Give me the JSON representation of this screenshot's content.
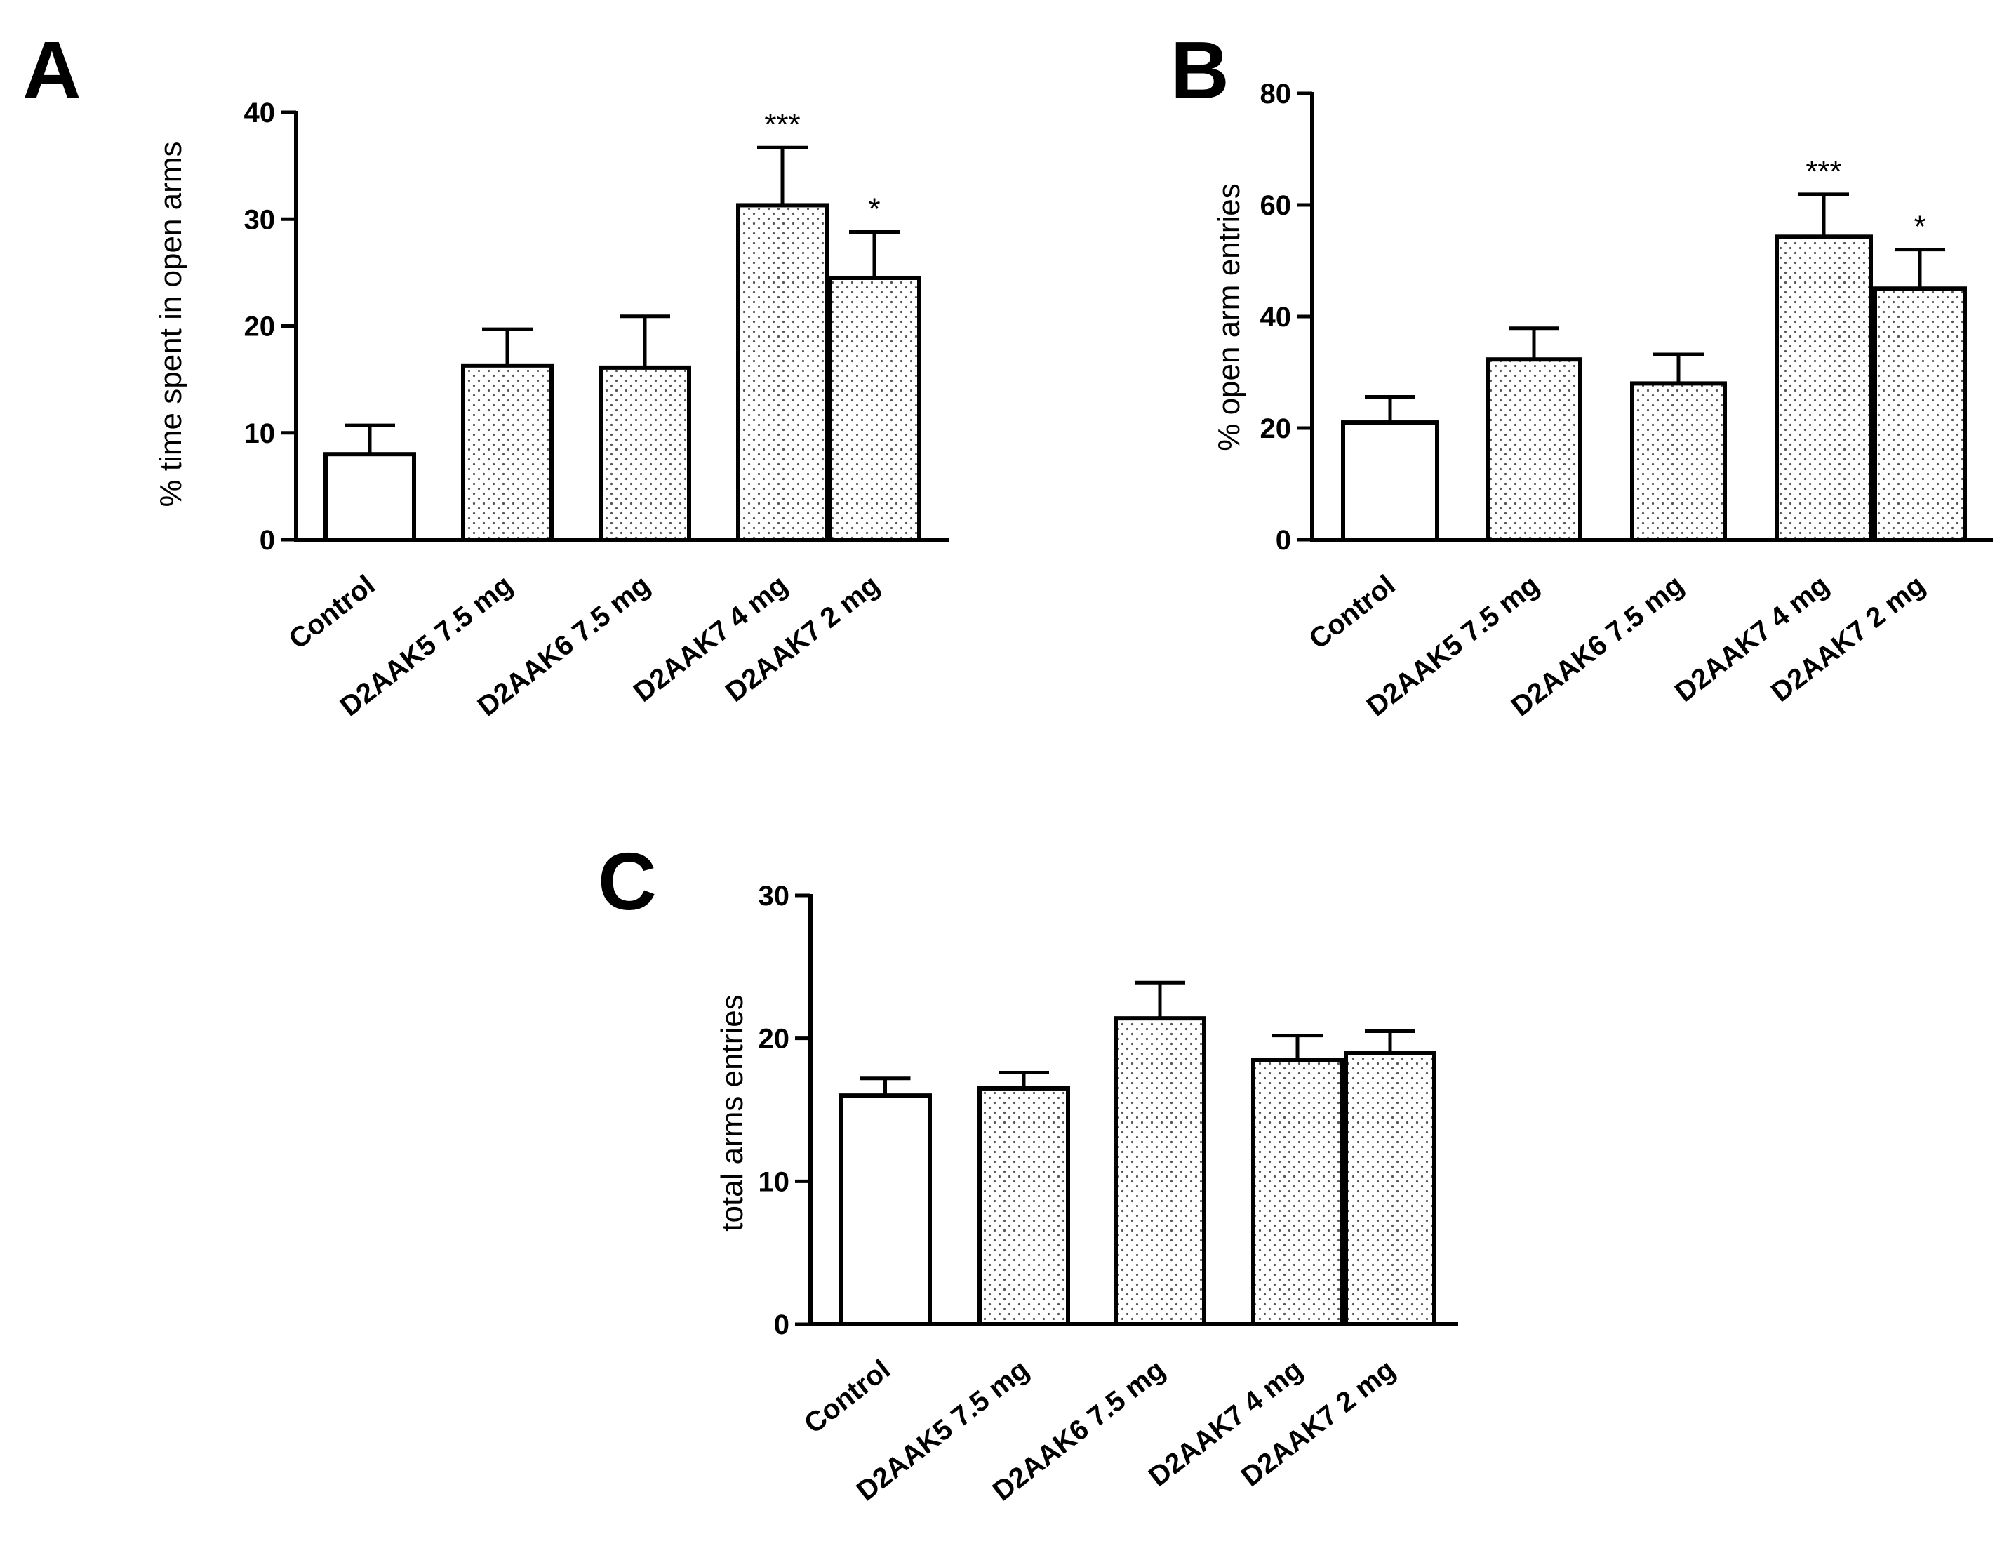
{
  "figure": {
    "colors": {
      "axis": "#000000",
      "background": "#ffffff",
      "control_fill": "#ffffff",
      "treatment_fill": "dotted"
    }
  },
  "chart_data": [
    {
      "panel": "A",
      "type": "bar",
      "categories": [
        "Control",
        "D2AAK5 7.5 mg",
        "D2AAK6 7.5 mg",
        "D2AAK7 4 mg",
        "D2AAK7 2 mg"
      ],
      "values": [
        8.0,
        16.3,
        16.1,
        31.3,
        24.5
      ],
      "errors": [
        2.7,
        3.4,
        4.8,
        5.4,
        4.3
      ],
      "fills": [
        "open",
        "dotted",
        "dotted",
        "dotted",
        "dotted"
      ],
      "significance": [
        "",
        "",
        "",
        "***",
        "*"
      ],
      "title": "",
      "xlabel": "",
      "ylabel": "% time spent in open arms",
      "ylim": [
        0,
        40
      ],
      "yticks": [
        0,
        10,
        20,
        30,
        40
      ]
    },
    {
      "panel": "B",
      "type": "bar",
      "categories": [
        "Control",
        "D2AAK5 7.5 mg",
        "D2AAK6 7.5 mg",
        "D2AAK7 4 mg",
        "D2AAK7 2 mg"
      ],
      "values": [
        21.0,
        32.3,
        28.0,
        54.3,
        45.0
      ],
      "errors": [
        4.6,
        5.6,
        5.2,
        7.6,
        7.0
      ],
      "fills": [
        "open",
        "dotted",
        "dotted",
        "dotted",
        "dotted"
      ],
      "significance": [
        "",
        "",
        "",
        "***",
        "*"
      ],
      "title": "",
      "xlabel": "",
      "ylabel": "% open arm entries",
      "ylim": [
        0,
        80
      ],
      "yticks": [
        0,
        20,
        40,
        60,
        80
      ]
    },
    {
      "panel": "C",
      "type": "bar",
      "categories": [
        "Control",
        "D2AAK5 7.5 mg",
        "D2AAK6 7.5 mg",
        "D2AAK7 4 mg",
        "D2AAK7 2 mg"
      ],
      "values": [
        16.0,
        16.5,
        21.4,
        18.5,
        19.0
      ],
      "errors": [
        1.2,
        1.1,
        2.5,
        1.7,
        1.5
      ],
      "fills": [
        "open",
        "dotted",
        "dotted",
        "dotted",
        "dotted"
      ],
      "significance": [
        "",
        "",
        "",
        "",
        ""
      ],
      "title": "",
      "xlabel": "",
      "ylabel": "total arms entries",
      "ylim": [
        0,
        30
      ],
      "yticks": [
        0,
        10,
        20,
        30
      ]
    }
  ]
}
